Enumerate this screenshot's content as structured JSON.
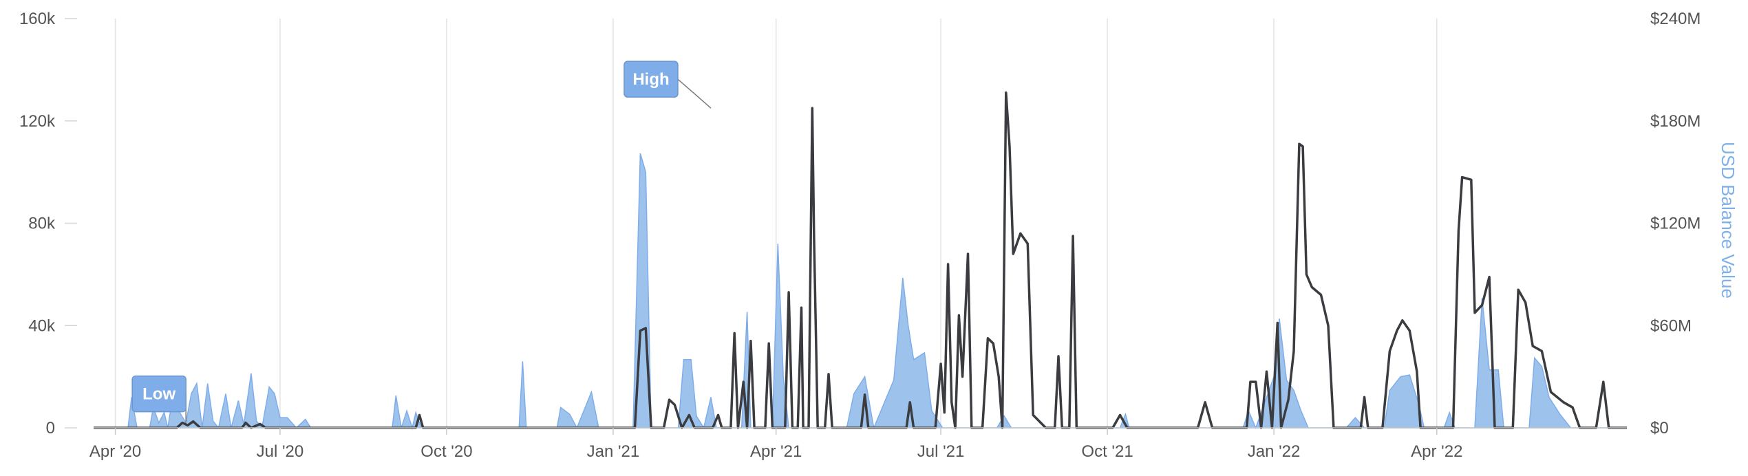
{
  "chart_data": {
    "type": "line",
    "title": "",
    "xlabel": "",
    "ylabel_left": "",
    "ylabel_right": "USD Balance Value",
    "x_ticks": [
      "Apr '20",
      "Jul '20",
      "Oct '20",
      "Jan '21",
      "Apr '21",
      "Jul '21",
      "Oct '21",
      "Jan '22",
      "Apr '22"
    ],
    "y_left_ticks": [
      "0",
      "40k",
      "80k",
      "120k",
      "160k"
    ],
    "y_right_ticks": [
      "$0",
      "$60M",
      "$120M",
      "$180M",
      "$240M"
    ],
    "y_left_range": [
      0,
      160000
    ],
    "y_right_range": [
      0,
      240000000
    ],
    "x_range": [
      "2020-03-20",
      "2022-07-15"
    ],
    "grid": "vertical",
    "colors": {
      "line": "#3a3c40",
      "area": "#8cb8ea",
      "flag": "#7fadea",
      "grid": "#e3e3e3"
    },
    "flags": [
      {
        "text": "High",
        "date": "2021-02-24",
        "value": 125000
      },
      {
        "text": "Low",
        "date": "2020-05-10",
        "value": 2000
      }
    ],
    "series": [
      {
        "axis": "right",
        "kind": "area",
        "points": [
          [
            "2020-03-20",
            0
          ],
          [
            "2020-04-08",
            0
          ],
          [
            "2020-04-10",
            18000000
          ],
          [
            "2020-04-13",
            0
          ],
          [
            "2020-04-20",
            0
          ],
          [
            "2020-04-22",
            12000000
          ],
          [
            "2020-04-25",
            3000000
          ],
          [
            "2020-04-28",
            9000000
          ],
          [
            "2020-04-30",
            0
          ],
          [
            "2020-05-03",
            20000000
          ],
          [
            "2020-05-06",
            10000000
          ],
          [
            "2020-05-10",
            3000000
          ],
          [
            "2020-05-13",
            20000000
          ],
          [
            "2020-05-16",
            26000000
          ],
          [
            "2020-05-19",
            0
          ],
          [
            "2020-05-22",
            26000000
          ],
          [
            "2020-05-25",
            4000000
          ],
          [
            "2020-05-28",
            0
          ],
          [
            "2020-06-01",
            20000000
          ],
          [
            "2020-06-04",
            0
          ],
          [
            "2020-06-08",
            16000000
          ],
          [
            "2020-06-11",
            2000000
          ],
          [
            "2020-06-15",
            32000000
          ],
          [
            "2020-06-18",
            4000000
          ],
          [
            "2020-06-21",
            0
          ],
          [
            "2020-06-25",
            24000000
          ],
          [
            "2020-06-28",
            20000000
          ],
          [
            "2020-07-01",
            6000000
          ],
          [
            "2020-07-05",
            6000000
          ],
          [
            "2020-07-10",
            0
          ],
          [
            "2020-07-15",
            5000000
          ],
          [
            "2020-07-18",
            0
          ],
          [
            "2020-09-01",
            0
          ],
          [
            "2020-09-03",
            19000000
          ],
          [
            "2020-09-06",
            0
          ],
          [
            "2020-09-09",
            10000000
          ],
          [
            "2020-09-12",
            0
          ],
          [
            "2020-09-14",
            9000000
          ],
          [
            "2020-09-17",
            0
          ],
          [
            "2020-11-10",
            0
          ],
          [
            "2020-11-12",
            39000000
          ],
          [
            "2020-11-14",
            0
          ],
          [
            "2020-12-01",
            0
          ],
          [
            "2020-12-03",
            12000000
          ],
          [
            "2020-12-08",
            8000000
          ],
          [
            "2020-12-12",
            0
          ],
          [
            "2020-12-20",
            21000000
          ],
          [
            "2020-12-24",
            0
          ],
          [
            "2021-01-12",
            0
          ],
          [
            "2021-01-16",
            161000000
          ],
          [
            "2021-01-19",
            150000000
          ],
          [
            "2021-01-22",
            0
          ],
          [
            "2021-02-06",
            0
          ],
          [
            "2021-02-09",
            40000000
          ],
          [
            "2021-02-13",
            40000000
          ],
          [
            "2021-02-16",
            7000000
          ],
          [
            "2021-02-20",
            0
          ],
          [
            "2021-02-24",
            18000000
          ],
          [
            "2021-02-27",
            0
          ],
          [
            "2021-03-13",
            0
          ],
          [
            "2021-03-16",
            68000000
          ],
          [
            "2021-03-18",
            0
          ],
          [
            "2021-03-30",
            0
          ],
          [
            "2021-04-02",
            108000000
          ],
          [
            "2021-04-05",
            30000000
          ],
          [
            "2021-04-08",
            0
          ],
          [
            "2021-05-10",
            0
          ],
          [
            "2021-05-14",
            20000000
          ],
          [
            "2021-05-20",
            30000000
          ],
          [
            "2021-05-25",
            0
          ],
          [
            "2021-06-05",
            28000000
          ],
          [
            "2021-06-10",
            88000000
          ],
          [
            "2021-06-13",
            60000000
          ],
          [
            "2021-06-16",
            40000000
          ],
          [
            "2021-06-22",
            44000000
          ],
          [
            "2021-06-26",
            10000000
          ],
          [
            "2021-07-02",
            0
          ],
          [
            "2021-08-01",
            0
          ],
          [
            "2021-08-05",
            7000000
          ],
          [
            "2021-08-09",
            0
          ],
          [
            "2021-10-08",
            0
          ],
          [
            "2021-10-11",
            8000000
          ],
          [
            "2021-10-13",
            0
          ],
          [
            "2021-12-15",
            0
          ],
          [
            "2021-12-18",
            10000000
          ],
          [
            "2021-12-22",
            0
          ],
          [
            "2022-01-01",
            30000000
          ],
          [
            "2022-01-04",
            64000000
          ],
          [
            "2022-01-08",
            28000000
          ],
          [
            "2022-01-12",
            22000000
          ],
          [
            "2022-01-16",
            10000000
          ],
          [
            "2022-01-20",
            0
          ],
          [
            "2022-02-10",
            0
          ],
          [
            "2022-02-15",
            6000000
          ],
          [
            "2022-02-20",
            0
          ],
          [
            "2022-03-03",
            0
          ],
          [
            "2022-03-06",
            22000000
          ],
          [
            "2022-03-12",
            30000000
          ],
          [
            "2022-03-17",
            31000000
          ],
          [
            "2022-03-22",
            14000000
          ],
          [
            "2022-03-25",
            0
          ],
          [
            "2022-04-05",
            0
          ],
          [
            "2022-04-08",
            9000000
          ],
          [
            "2022-04-11",
            0
          ],
          [
            "2022-04-22",
            0
          ],
          [
            "2022-04-26",
            76000000
          ],
          [
            "2022-04-30",
            34000000
          ],
          [
            "2022-05-05",
            34000000
          ],
          [
            "2022-05-08",
            0
          ],
          [
            "2022-05-22",
            0
          ],
          [
            "2022-05-25",
            41000000
          ],
          [
            "2022-05-29",
            36000000
          ],
          [
            "2022-06-02",
            18000000
          ],
          [
            "2022-06-08",
            8000000
          ],
          [
            "2022-06-14",
            0
          ],
          [
            "2022-07-15",
            0
          ]
        ]
      },
      {
        "axis": "left",
        "kind": "line",
        "points": [
          [
            "2020-03-20",
            0
          ],
          [
            "2020-05-05",
            0
          ],
          [
            "2020-05-08",
            2000
          ],
          [
            "2020-05-11",
            1000
          ],
          [
            "2020-05-14",
            2500
          ],
          [
            "2020-05-18",
            0
          ],
          [
            "2020-06-10",
            0
          ],
          [
            "2020-06-12",
            2000
          ],
          [
            "2020-06-15",
            0
          ],
          [
            "2020-06-20",
            1500
          ],
          [
            "2020-06-23",
            0
          ],
          [
            "2020-09-14",
            0
          ],
          [
            "2020-09-16",
            5000
          ],
          [
            "2020-09-18",
            0
          ],
          [
            "2021-01-13",
            0
          ],
          [
            "2021-01-16",
            38000
          ],
          [
            "2021-01-19",
            39000
          ],
          [
            "2021-01-22",
            0
          ],
          [
            "2021-01-29",
            0
          ],
          [
            "2021-02-01",
            11000
          ],
          [
            "2021-02-04",
            9000
          ],
          [
            "2021-02-08",
            0
          ],
          [
            "2021-02-12",
            5000
          ],
          [
            "2021-02-15",
            0
          ],
          [
            "2021-02-25",
            0
          ],
          [
            "2021-02-28",
            5000
          ],
          [
            "2021-03-02",
            0
          ],
          [
            "2021-03-07",
            0
          ],
          [
            "2021-03-09",
            37000
          ],
          [
            "2021-03-11",
            0
          ],
          [
            "2021-03-14",
            18000
          ],
          [
            "2021-03-16",
            0
          ],
          [
            "2021-03-18",
            34000
          ],
          [
            "2021-03-20",
            0
          ],
          [
            "2021-03-26",
            0
          ],
          [
            "2021-03-28",
            33000
          ],
          [
            "2021-03-30",
            0
          ],
          [
            "2021-04-06",
            0
          ],
          [
            "2021-04-08",
            53000
          ],
          [
            "2021-04-10",
            0
          ],
          [
            "2021-04-13",
            0
          ],
          [
            "2021-04-15",
            47000
          ],
          [
            "2021-04-16",
            0
          ],
          [
            "2021-04-19",
            0
          ],
          [
            "2021-04-21",
            125000
          ],
          [
            "2021-04-22",
            74000
          ],
          [
            "2021-04-24",
            0
          ],
          [
            "2021-04-28",
            0
          ],
          [
            "2021-04-30",
            21000
          ],
          [
            "2021-05-02",
            0
          ],
          [
            "2021-05-18",
            0
          ],
          [
            "2021-05-20",
            13000
          ],
          [
            "2021-05-22",
            0
          ],
          [
            "2021-06-12",
            0
          ],
          [
            "2021-06-14",
            10000
          ],
          [
            "2021-06-16",
            0
          ],
          [
            "2021-06-28",
            0
          ],
          [
            "2021-07-01",
            25000
          ],
          [
            "2021-07-03",
            6000
          ],
          [
            "2021-07-05",
            64000
          ],
          [
            "2021-07-07",
            10000
          ],
          [
            "2021-07-09",
            0
          ],
          [
            "2021-07-11",
            44000
          ],
          [
            "2021-07-13",
            20000
          ],
          [
            "2021-07-16",
            68000
          ],
          [
            "2021-07-18",
            0
          ],
          [
            "2021-07-24",
            0
          ],
          [
            "2021-07-27",
            35000
          ],
          [
            "2021-07-30",
            33000
          ],
          [
            "2021-08-02",
            20000
          ],
          [
            "2021-08-04",
            0
          ],
          [
            "2021-08-06",
            131000
          ],
          [
            "2021-08-08",
            110000
          ],
          [
            "2021-08-10",
            68000
          ],
          [
            "2021-08-14",
            76000
          ],
          [
            "2021-08-18",
            72000
          ],
          [
            "2021-08-21",
            5000
          ],
          [
            "2021-08-28",
            0
          ],
          [
            "2021-09-02",
            0
          ],
          [
            "2021-09-04",
            28000
          ],
          [
            "2021-09-06",
            0
          ],
          [
            "2021-09-10",
            0
          ],
          [
            "2021-09-12",
            75000
          ],
          [
            "2021-09-14",
            0
          ],
          [
            "2021-10-04",
            0
          ],
          [
            "2021-10-08",
            5000
          ],
          [
            "2021-10-12",
            0
          ],
          [
            "2021-11-20",
            0
          ],
          [
            "2021-11-24",
            10000
          ],
          [
            "2021-11-28",
            0
          ],
          [
            "2021-12-17",
            0
          ],
          [
            "2021-12-19",
            18000
          ],
          [
            "2021-12-22",
            18000
          ],
          [
            "2021-12-25",
            0
          ],
          [
            "2021-12-28",
            22000
          ],
          [
            "2021-12-31",
            0
          ],
          [
            "2022-01-03",
            41000
          ],
          [
            "2022-01-05",
            0
          ],
          [
            "2022-01-09",
            11000
          ],
          [
            "2022-01-12",
            30000
          ],
          [
            "2022-01-15",
            111000
          ],
          [
            "2022-01-17",
            110000
          ],
          [
            "2022-01-19",
            60000
          ],
          [
            "2022-01-22",
            55000
          ],
          [
            "2022-01-27",
            52000
          ],
          [
            "2022-01-31",
            40000
          ],
          [
            "2022-02-03",
            0
          ],
          [
            "2022-02-18",
            0
          ],
          [
            "2022-02-20",
            12000
          ],
          [
            "2022-02-22",
            0
          ],
          [
            "2022-03-02",
            0
          ],
          [
            "2022-03-06",
            30000
          ],
          [
            "2022-03-10",
            38000
          ],
          [
            "2022-03-13",
            42000
          ],
          [
            "2022-03-17",
            38000
          ],
          [
            "2022-03-21",
            22000
          ],
          [
            "2022-03-23",
            0
          ],
          [
            "2022-04-10",
            0
          ],
          [
            "2022-04-13",
            77000
          ],
          [
            "2022-04-15",
            98000
          ],
          [
            "2022-04-20",
            97000
          ],
          [
            "2022-04-22",
            45000
          ],
          [
            "2022-04-26",
            48000
          ],
          [
            "2022-04-30",
            59000
          ],
          [
            "2022-05-03",
            0
          ],
          [
            "2022-05-13",
            0
          ],
          [
            "2022-05-16",
            54000
          ],
          [
            "2022-05-20",
            49000
          ],
          [
            "2022-05-24",
            32000
          ],
          [
            "2022-05-29",
            30000
          ],
          [
            "2022-06-03",
            14000
          ],
          [
            "2022-06-10",
            10000
          ],
          [
            "2022-06-15",
            8000
          ],
          [
            "2022-06-19",
            0
          ],
          [
            "2022-06-28",
            0
          ],
          [
            "2022-07-02",
            18000
          ],
          [
            "2022-07-05",
            0
          ],
          [
            "2022-07-15",
            0
          ]
        ]
      }
    ]
  }
}
